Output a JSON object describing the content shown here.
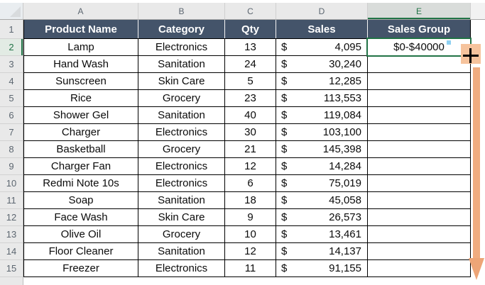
{
  "colors": {
    "table_header_bg": "#44546A",
    "table_header_text": "#FFFFFF",
    "selection_green": "#217346",
    "annotation_handle_fill": "#F6C39C",
    "annotation_arrow_fill": "#F0AC80",
    "sheet_header_bg": "#E9E9E9",
    "grid_border": "#000000"
  },
  "sheet": {
    "column_letters": [
      "A",
      "B",
      "C",
      "D",
      "E"
    ],
    "selected_column": "E",
    "row_numbers": [
      "1",
      "2",
      "3",
      "4",
      "5",
      "6",
      "7",
      "8",
      "9",
      "10",
      "11",
      "12",
      "13",
      "14",
      "15"
    ],
    "selected_row": "2",
    "active_cell": "E2",
    "active_cell_value": "$0-$40000"
  },
  "table": {
    "headers": [
      "Product Name",
      "Category",
      "Qty",
      "Sales",
      "Sales Group"
    ],
    "currency_symbol": "$",
    "rows": [
      {
        "product": "Lamp",
        "category": "Electronics",
        "qty": "13",
        "sales": "4,095",
        "group": "$0-$40000"
      },
      {
        "product": "Hand Wash",
        "category": "Sanitation",
        "qty": "24",
        "sales": "30,240",
        "group": ""
      },
      {
        "product": "Sunscreen",
        "category": "Skin Care",
        "qty": "5",
        "sales": "12,285",
        "group": ""
      },
      {
        "product": "Rice",
        "category": "Grocery",
        "qty": "23",
        "sales": "113,553",
        "group": ""
      },
      {
        "product": "Shower Gel",
        "category": "Sanitation",
        "qty": "40",
        "sales": "119,084",
        "group": ""
      },
      {
        "product": "Charger",
        "category": "Electronics",
        "qty": "30",
        "sales": "103,100",
        "group": ""
      },
      {
        "product": "Basketball",
        "category": "Grocery",
        "qty": "21",
        "sales": "145,398",
        "group": ""
      },
      {
        "product": "Charger Fan",
        "category": "Electronics",
        "qty": "12",
        "sales": "14,284",
        "group": ""
      },
      {
        "product": "Redmi Note 10s",
        "category": "Electronics",
        "qty": "6",
        "sales": "75,019",
        "group": ""
      },
      {
        "product": "Soap",
        "category": "Sanitation",
        "qty": "18",
        "sales": "45,058",
        "group": ""
      },
      {
        "product": "Face Wash",
        "category": "Skin Care",
        "qty": "9",
        "sales": "26,573",
        "group": ""
      },
      {
        "product": "Olive Oil",
        "category": "Grocery",
        "qty": "10",
        "sales": "13,461",
        "group": ""
      },
      {
        "product": "Floor Cleaner",
        "category": "Sanitation",
        "qty": "12",
        "sales": "14,137",
        "group": ""
      },
      {
        "product": "Freezer",
        "category": "Electronics",
        "qty": "11",
        "sales": "91,155",
        "group": ""
      }
    ]
  },
  "annotation": {
    "fill_handle_cursor": "plus-crosshair",
    "drag_direction": "down"
  }
}
